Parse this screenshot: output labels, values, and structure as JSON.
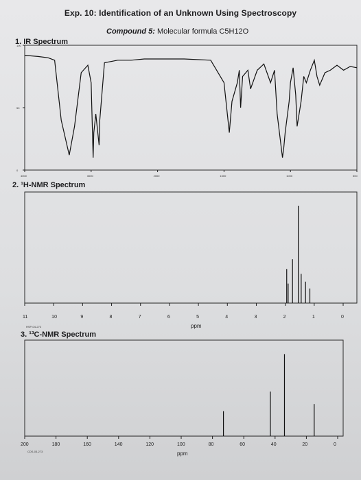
{
  "header": {
    "title": "Exp. 10: Identification of an Unknown Using Spectroscopy",
    "compound_prefix": "Compound 5:",
    "compound_text": "Molecular formula",
    "formula": "C5H12O"
  },
  "sections": [
    {
      "label": "1.  IR Spectrum"
    },
    {
      "label": "2.  ¹H-NMR Spectrum"
    },
    {
      "label": "3.  ¹³C-NMR Spectrum"
    }
  ],
  "chart_data": [
    {
      "type": "line",
      "title": "IR Spectrum",
      "xlabel": "",
      "ylabel": "",
      "x_ticks": [
        "4000",
        "3000",
        "2000",
        "1500",
        "1000",
        "500"
      ],
      "y_ticks": [
        "100",
        "50",
        "0"
      ],
      "ylim": [
        0,
        100
      ],
      "series": [
        {
          "x": [
            4000,
            3800,
            3650,
            3550,
            3450,
            3330,
            3250,
            3150,
            3050,
            3000,
            2970,
            2960,
            2930,
            2880,
            2870,
            2800,
            2600,
            2400,
            2200,
            2000,
            1800,
            1600,
            1500,
            1470,
            1460,
            1440,
            1400,
            1385,
            1375,
            1360,
            1320,
            1300,
            1250,
            1200,
            1150,
            1120,
            1100,
            1060,
            1050,
            1040,
            1010,
            1000,
            980,
            960,
            950,
            920,
            900,
            880,
            850,
            820,
            800,
            780,
            740,
            700,
            650,
            600,
            550,
            500
          ],
          "y": [
            92,
            91,
            90,
            88,
            40,
            12,
            35,
            78,
            84,
            70,
            10,
            30,
            45,
            20,
            40,
            86,
            88,
            88,
            89,
            89,
            89,
            88,
            70,
            40,
            30,
            55,
            70,
            80,
            50,
            75,
            80,
            65,
            80,
            85,
            70,
            80,
            45,
            10,
            18,
            30,
            55,
            70,
            82,
            60,
            35,
            55,
            75,
            70,
            80,
            88,
            75,
            68,
            78,
            80,
            84,
            80,
            83,
            82
          ]
        }
      ]
    },
    {
      "type": "line",
      "title": "1H-NMR Spectrum",
      "xlabel": "ppm",
      "x_ticks": [
        "11",
        "10",
        "9",
        "8",
        "7",
        "6",
        "5",
        "4",
        "3",
        "2",
        "1",
        "0"
      ],
      "xlim": [
        11,
        0
      ],
      "footer_code": "HSP-04-273",
      "peaks": [
        {
          "ppm": 1.95,
          "height": 0.35
        },
        {
          "ppm": 1.9,
          "height": 0.2
        },
        {
          "ppm": 1.75,
          "height": 0.45
        },
        {
          "ppm": 1.55,
          "height": 1.0
        },
        {
          "ppm": 1.45,
          "height": 0.3
        },
        {
          "ppm": 1.3,
          "height": 0.22
        },
        {
          "ppm": 1.15,
          "height": 0.15
        }
      ]
    },
    {
      "type": "line",
      "title": "13C-NMR Spectrum",
      "xlabel": "ppm",
      "x_ticks": [
        "200",
        "180",
        "160",
        "140",
        "120",
        "100",
        "80",
        "60",
        "40",
        "20",
        "0"
      ],
      "xlim": [
        200,
        0
      ],
      "footer_code": "CDS-03-273",
      "peaks": [
        {
          "ppm": 73,
          "height": 0.28
        },
        {
          "ppm": 43,
          "height": 0.5
        },
        {
          "ppm": 34,
          "height": 0.92
        },
        {
          "ppm": 15,
          "height": 0.36
        }
      ]
    }
  ]
}
